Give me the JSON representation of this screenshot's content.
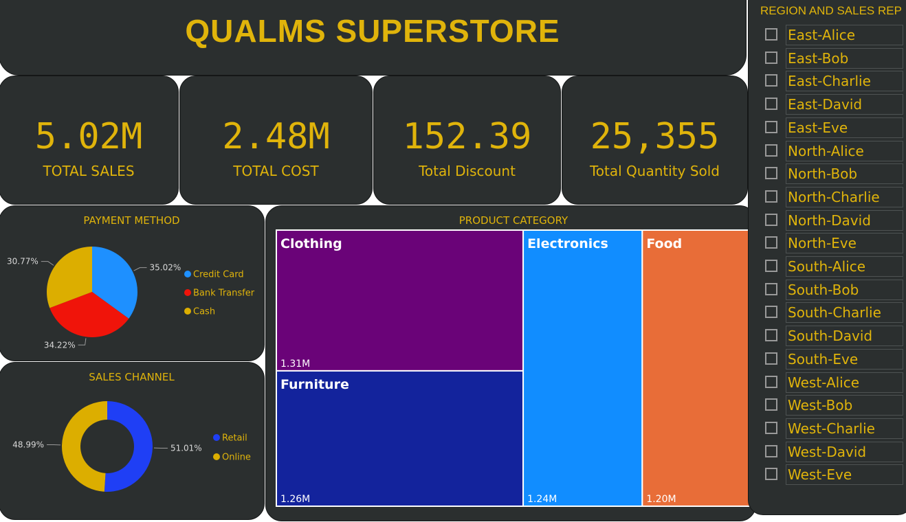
{
  "title": "QUALMS SUPERSTORE",
  "kpis": [
    {
      "value": "5.02M",
      "label": "TOTAL SALES"
    },
    {
      "value": "2.48M",
      "label": "TOTAL COST"
    },
    {
      "value": "152.39",
      "label": "Total Discount"
    },
    {
      "value": "25,355",
      "label": "Total Quantity Sold"
    }
  ],
  "colors": {
    "panel": "#2b2f2f",
    "accent": "#e0b40b",
    "credit_card": "#1e90ff",
    "bank_transfer": "#f0140a",
    "cash": "#dcae00",
    "retail": "#1f3ff5",
    "online": "#dcae00",
    "clothing": "#6a0378",
    "furniture": "#13239c",
    "electronics": "#118dff",
    "food": "#e86d38"
  },
  "chart_data": [
    {
      "type": "pie",
      "title": "PAYMENT METHOD",
      "labels": [
        "Credit Card",
        "Bank Transfer",
        "Cash"
      ],
      "values": [
        35.02,
        34.22,
        30.77
      ],
      "data_labels": [
        "35.02%",
        "34.22%",
        "30.77%"
      ],
      "legend": "right"
    },
    {
      "type": "pie",
      "subtype": "donut",
      "title": "SALES CHANNEL",
      "labels": [
        "Retail",
        "Online"
      ],
      "values": [
        51.01,
        48.99
      ],
      "data_labels": [
        "51.01%",
        "48.99%"
      ],
      "legend": "right"
    },
    {
      "type": "treemap",
      "title": "PRODUCT CATEGORY",
      "categories": [
        "Clothing",
        "Furniture",
        "Electronics",
        "Food"
      ],
      "values": [
        1.31,
        1.26,
        1.24,
        1.2
      ],
      "data_labels": [
        "1.31M",
        "1.26M",
        "1.24M",
        "1.20M"
      ]
    }
  ],
  "slicer": {
    "title": "REGION AND SALES REP",
    "items": [
      "East-Alice",
      "East-Bob",
      "East-Charlie",
      "East-David",
      "East-Eve",
      "North-Alice",
      "North-Bob",
      "North-Charlie",
      "North-David",
      "North-Eve",
      "South-Alice",
      "South-Bob",
      "South-Charlie",
      "South-David",
      "South-Eve",
      "West-Alice",
      "West-Bob",
      "West-Charlie",
      "West-David",
      "West-Eve"
    ]
  }
}
